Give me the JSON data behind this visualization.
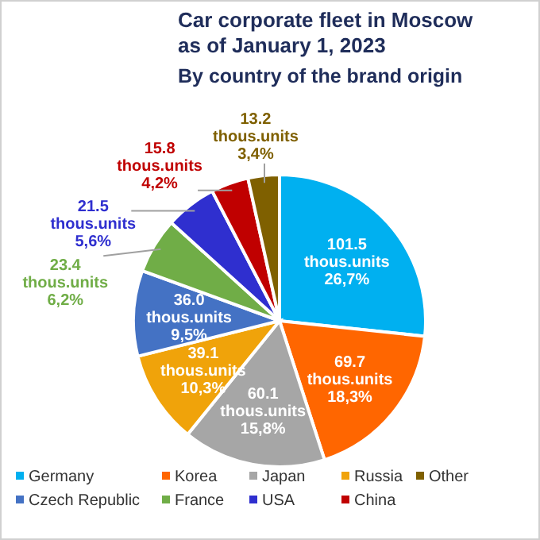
{
  "chart_data": {
    "type": "pie",
    "title": "Car corporate fleet in Moscow\nas of January 1, 2023",
    "subtitle": "By country of the brand origin",
    "categories": [
      "Germany",
      "Korea",
      "Japan",
      "Russia",
      "Czech Republic",
      "France",
      "USA",
      "China",
      "Other"
    ],
    "values": [
      101.5,
      69.7,
      60.1,
      39.1,
      36.0,
      23.4,
      21.5,
      15.8,
      13.2
    ],
    "value_labels": [
      "101.5\nthous.units\n26,7%",
      "69.7\nthous.units\n18,3%",
      "60.1\nthous.units\n15,8%",
      "39.1\nthous.units\n10,3%",
      "36.0\nthous.units\n9,5%",
      "23.4\nthous.units\n6,2%",
      "21.5\nthous.units\n5,6%",
      "15.8\nthous.units\n4,2%",
      "13.2\nthous.units\n3,4%"
    ],
    "colors": [
      "#00b0f0",
      "#ff6600",
      "#a6a6a6",
      "#f0a30a",
      "#4472c4",
      "#70ad47",
      "#2f2fcf",
      "#c00000",
      "#7f6000"
    ],
    "legend": "bottom"
  }
}
